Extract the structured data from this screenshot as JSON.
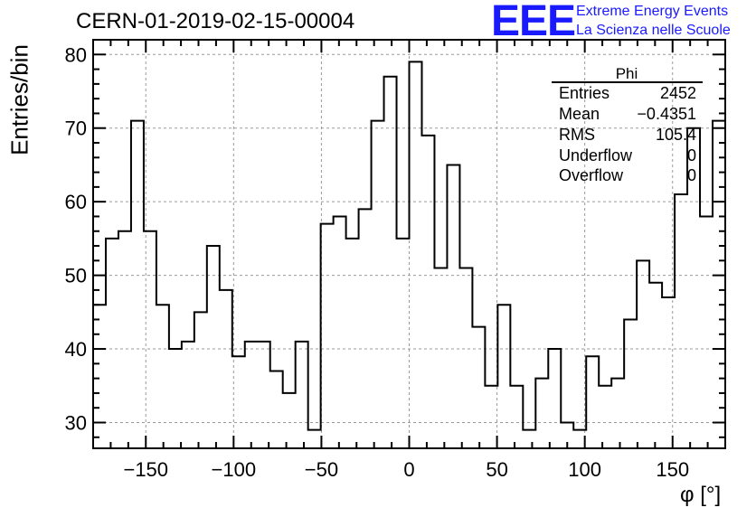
{
  "title": "CERN-01-2019-02-15-00004",
  "logo": {
    "text": "EEE",
    "line1": "Extreme Energy Events",
    "line2": "La Scienza nelle Scuole",
    "color": "#1a1aff"
  },
  "stats": {
    "name": "Phi",
    "rows": [
      {
        "label": "Entries",
        "value": "2452"
      },
      {
        "label": "Mean",
        "value": "−0.4351"
      },
      {
        "label": "RMS",
        "value": "105.4"
      },
      {
        "label": "Underflow",
        "value": "0"
      },
      {
        "label": "Overflow",
        "value": "0"
      }
    ]
  },
  "chart_data": {
    "type": "bar",
    "style": "step-histogram",
    "xlabel": "φ [°]",
    "ylabel": "Entries/bin",
    "xlim": [
      -180,
      180
    ],
    "ylim": [
      26.5,
      82
    ],
    "bin_width": 7.2,
    "x_ticks": [
      -150,
      -100,
      -50,
      0,
      50,
      100,
      150
    ],
    "x_tick_labels": [
      "−150",
      "−100",
      "−50",
      "0",
      "50",
      "100",
      "150"
    ],
    "y_ticks": [
      30,
      40,
      50,
      60,
      70,
      80
    ],
    "y_tick_labels": [
      "30",
      "40",
      "50",
      "60",
      "70",
      "80"
    ],
    "grid": true,
    "values": [
      46,
      55,
      56,
      71,
      56,
      46,
      40,
      41,
      45,
      54,
      48,
      39,
      41,
      41,
      37,
      34,
      41,
      29,
      57,
      58,
      55,
      59,
      71,
      77,
      55,
      79,
      69,
      51,
      65,
      51,
      43,
      35,
      46,
      35,
      29,
      36,
      40,
      30,
      29,
      39,
      35,
      36,
      44,
      52,
      49,
      47,
      61,
      70,
      58,
      71
    ]
  }
}
